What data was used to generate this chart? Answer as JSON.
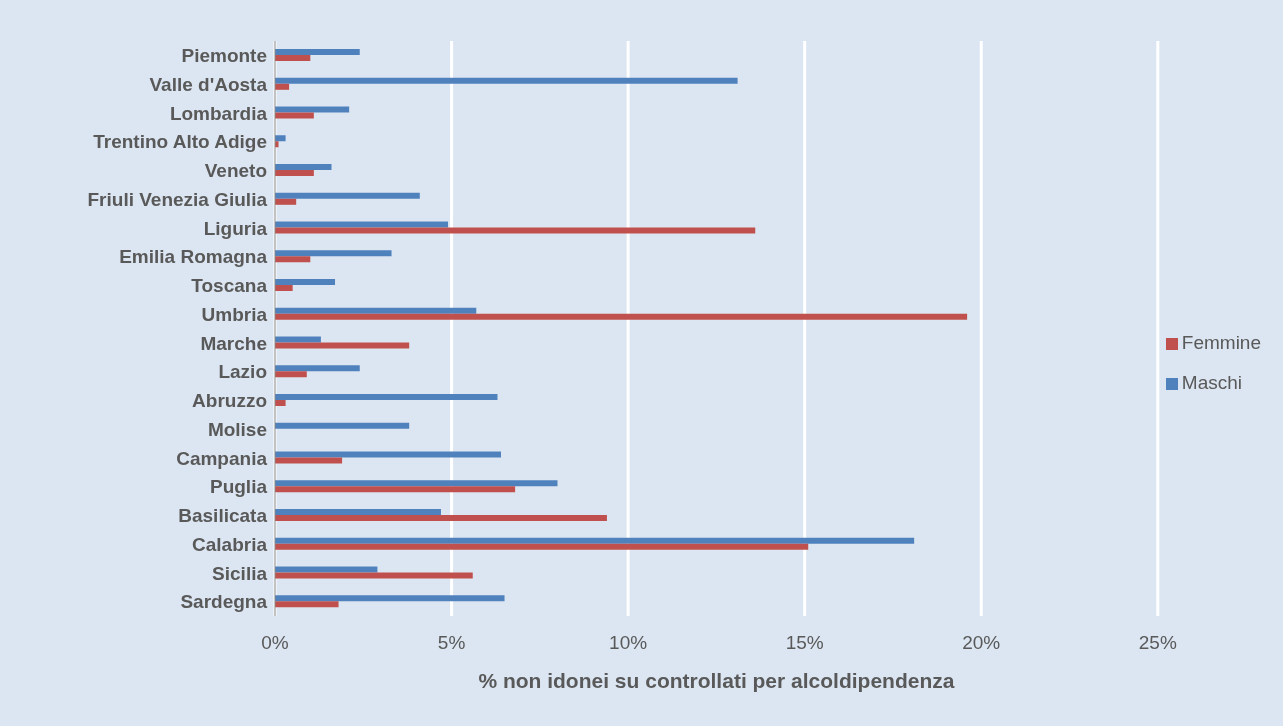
{
  "chart_data": {
    "type": "bar",
    "orientation": "horizontal",
    "xlabel": "% non idonei su controllati per alcoldipendenza",
    "categories": [
      "Piemonte",
      "Valle d'Aosta",
      "Lombardia",
      "Trentino Alto Adige",
      "Veneto",
      "Friuli Venezia Giulia",
      "Liguria",
      "Emilia Romagna",
      "Toscana",
      "Umbria",
      "Marche",
      "Lazio",
      "Abruzzo",
      "Molise",
      "Campania",
      "Puglia",
      "Basilicata",
      "Calabria",
      "Sicilia ",
      "Sardegna"
    ],
    "series": [
      {
        "name": "Maschi",
        "color": "#4f81bd",
        "values": [
          2.4,
          13.1,
          2.1,
          0.3,
          1.6,
          4.1,
          4.9,
          3.3,
          1.7,
          5.7,
          1.3,
          2.4,
          6.3,
          3.8,
          6.4,
          8.0,
          4.7,
          18.1,
          2.9,
          6.5
        ]
      },
      {
        "name": "Femmine",
        "color": "#c0504d",
        "values": [
          1.0,
          0.4,
          1.1,
          0.1,
          1.1,
          0.6,
          13.6,
          1.0,
          0.5,
          19.6,
          3.8,
          0.9,
          0.3,
          0,
          1.9,
          6.8,
          9.4,
          15.1,
          5.6,
          1.8
        ]
      }
    ],
    "xlim": [
      0,
      25
    ],
    "xticks": [
      {
        "value": 0,
        "label": "0%"
      },
      {
        "value": 5,
        "label": "5%"
      },
      {
        "value": 10,
        "label": "10%"
      },
      {
        "value": 15,
        "label": "15%"
      },
      {
        "value": 20,
        "label": "20%"
      },
      {
        "value": 25,
        "label": "25%"
      }
    ],
    "grid": "x",
    "legend": "right"
  }
}
